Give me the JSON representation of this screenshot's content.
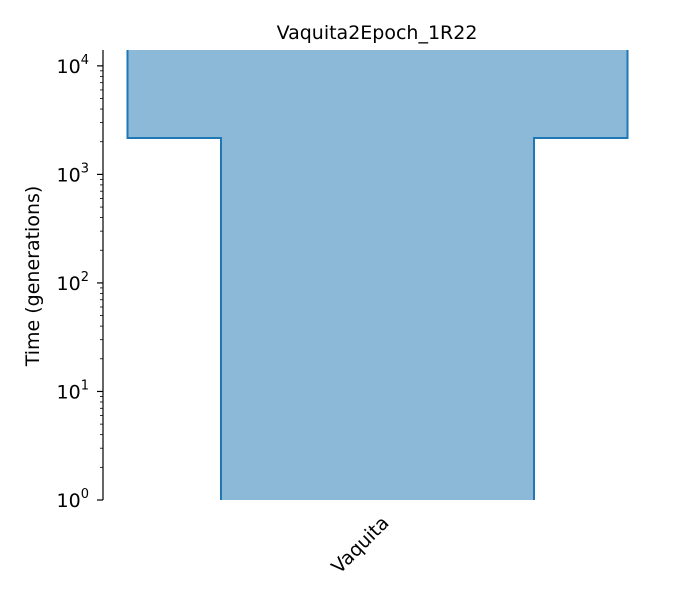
{
  "chart_data": {
    "type": "demes-tubes",
    "title": "Vaquita2Epoch_1R22",
    "ylabel": "Time (generations)",
    "yscale": "log",
    "ylim": [
      1,
      14000
    ],
    "yticks": [
      {
        "value": 1,
        "base": "10",
        "exp": "0"
      },
      {
        "value": 10,
        "base": "10",
        "exp": "1"
      },
      {
        "value": 100,
        "base": "10",
        "exp": "2"
      },
      {
        "value": 1000,
        "base": "10",
        "exp": "3"
      },
      {
        "value": 10000,
        "base": "10",
        "exp": "4"
      }
    ],
    "categories": [
      "Vaquita"
    ],
    "populations": [
      {
        "name": "Vaquita",
        "epochs": [
          {
            "start_time": 14000,
            "end_time": 2162,
            "size": 5000
          },
          {
            "start_time": 2162,
            "end_time": 1,
            "size": 3130
          }
        ]
      }
    ],
    "fill_color": "#8db9d9",
    "edge_color": "#1f77b4"
  }
}
